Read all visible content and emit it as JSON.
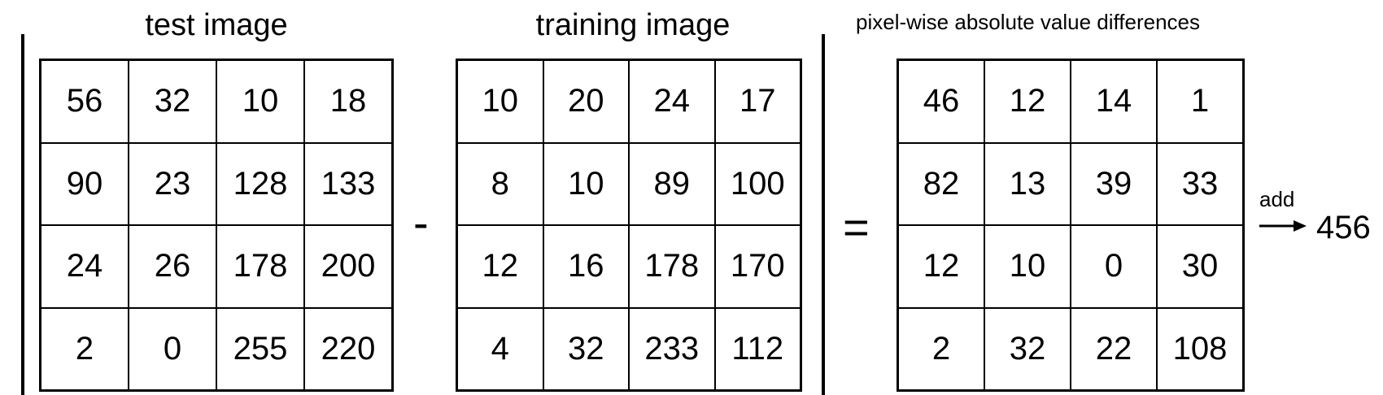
{
  "test": {
    "title": "test image",
    "rows": [
      [
        "56",
        "32",
        "10",
        "18"
      ],
      [
        "90",
        "23",
        "128",
        "133"
      ],
      [
        "24",
        "26",
        "178",
        "200"
      ],
      [
        "2",
        "0",
        "255",
        "220"
      ]
    ]
  },
  "training": {
    "title": "training image",
    "rows": [
      [
        "10",
        "20",
        "24",
        "17"
      ],
      [
        "8",
        "10",
        "89",
        "100"
      ],
      [
        "12",
        "16",
        "178",
        "170"
      ],
      [
        "4",
        "32",
        "233",
        "112"
      ]
    ]
  },
  "differences": {
    "title": "pixel-wise absolute value differences",
    "rows": [
      [
        "46",
        "12",
        "14",
        "1"
      ],
      [
        "82",
        "13",
        "39",
        "33"
      ],
      [
        "12",
        "10",
        "0",
        "30"
      ],
      [
        "2",
        "32",
        "22",
        "108"
      ]
    ]
  },
  "operators": {
    "minus": "-",
    "equals": "="
  },
  "sum": {
    "label": "add",
    "value": "456"
  }
}
